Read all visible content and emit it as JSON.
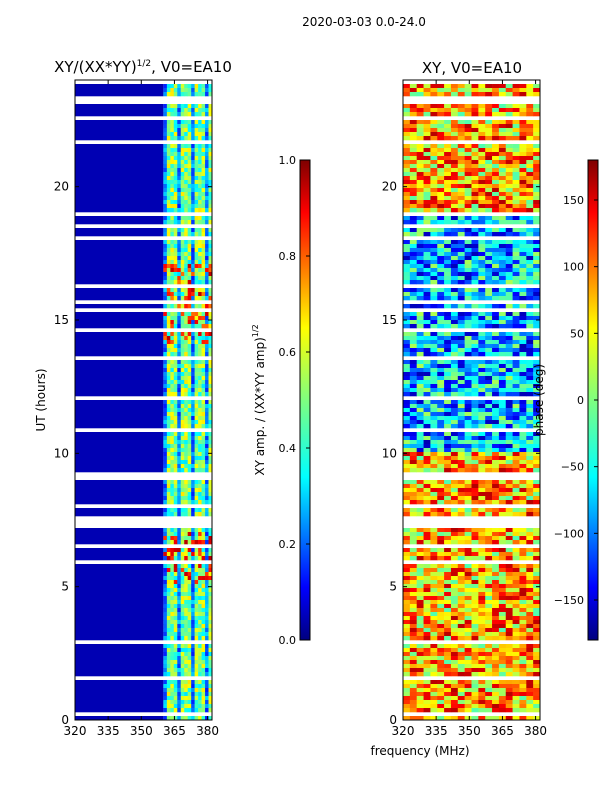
{
  "suptitle": "2020-03-03 0.0-24.0",
  "xlabel_shared": "frequency (MHz)",
  "chart_data": [
    {
      "type": "heatmap",
      "title": "XY/(XX*YY)^1/2, V0=EA10",
      "title_parts": {
        "main": "XY/(XX*YY)",
        "sup": "1/2",
        "rest": ", V0=EA10"
      },
      "xlabel": "",
      "ylabel": "UT (hours)",
      "xlim": [
        320,
        382
      ],
      "ylim": [
        0,
        24
      ],
      "xticks": [
        320,
        335,
        350,
        365,
        380
      ],
      "yticks": [
        0,
        5,
        10,
        15,
        20
      ],
      "colorbar": {
        "range": [
          0.0,
          1.0
        ],
        "ticks": [
          "0.0",
          "0.2",
          "0.4",
          "0.6",
          "0.8",
          "1.0"
        ],
        "label": "XY amp. / (XX*YY amp)^1/2",
        "label_parts": {
          "main": "XY amp. / (XX*YY amp)",
          "sup": "1/2"
        },
        "colormap": "jet"
      },
      "description_values": {
        "background_level": 0.0,
        "high_freq_band_start_mhz": 360
      }
    },
    {
      "type": "heatmap",
      "title": "XY, V0=EA10",
      "xlabel": "frequency (MHz)",
      "ylabel": "",
      "xlim": [
        320,
        382
      ],
      "ylim": [
        0,
        24
      ],
      "xticks": [
        320,
        335,
        350,
        365,
        380
      ],
      "yticks": [
        0,
        5,
        10,
        15,
        20
      ],
      "colorbar": {
        "range": [
          -180,
          180
        ],
        "ticks": [
          "−150",
          "−100",
          "−50",
          "0",
          "50",
          "100",
          "150"
        ],
        "tick_values": [
          -150,
          -100,
          -50,
          0,
          50,
          100,
          150
        ],
        "label": "phase (deg)",
        "colormap": "jet"
      }
    }
  ],
  "colors": {
    "jet": [
      "#00007f",
      "#0000ff",
      "#007fff",
      "#00ffff",
      "#7fff7f",
      "#ffff00",
      "#ff7f00",
      "#ff0000",
      "#7f0000"
    ]
  }
}
